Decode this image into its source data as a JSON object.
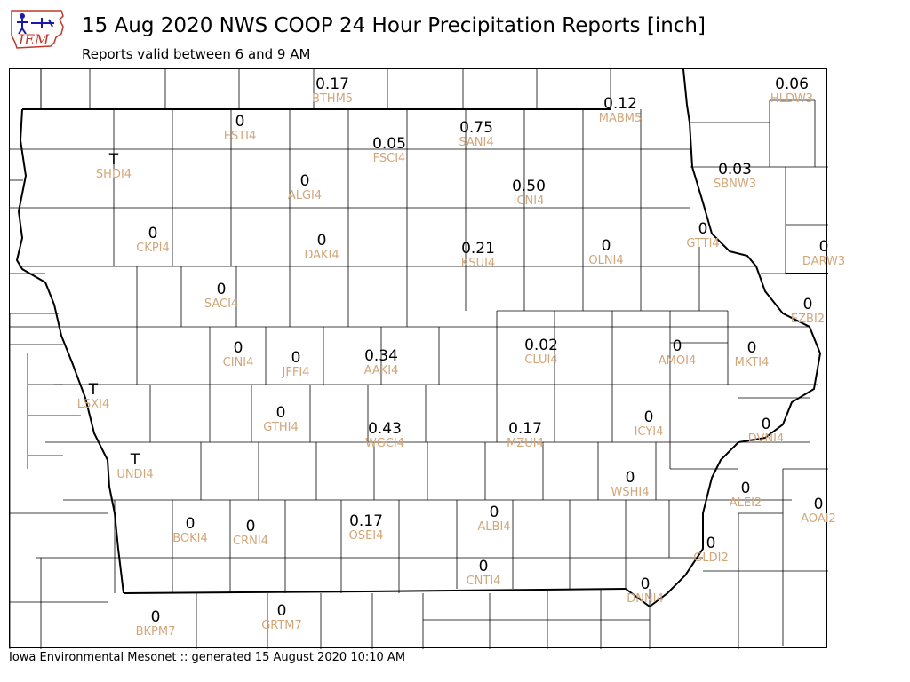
{
  "header": {
    "title": "15 Aug 2020 NWS COOP 24 Hour Precipitation Reports [inch]",
    "subtitle": "Reports valid between 6 and 9 AM",
    "logo_text": "IEM"
  },
  "footer": {
    "text": "Iowa Environmental Mesonet :: generated 15 August 2020 10:10 AM"
  },
  "colors": {
    "value_text": "#000000",
    "station_id_text": "#d2a679",
    "boundary_lines": "#000000",
    "logo_blue": "#1a1aa8",
    "logo_red": "#c0392b"
  },
  "stations": [
    {
      "id": "BTHM5",
      "value": "0.17"
    },
    {
      "id": "HLDW3",
      "value": "0.06"
    },
    {
      "id": "MABM5",
      "value": "0.12"
    },
    {
      "id": "ESTI4",
      "value": "0"
    },
    {
      "id": "FSCI4",
      "value": "0.05"
    },
    {
      "id": "SANI4",
      "value": "0.75"
    },
    {
      "id": "SHDI4",
      "value": "T"
    },
    {
      "id": "ALGI4",
      "value": "0"
    },
    {
      "id": "ICNI4",
      "value": "0.50"
    },
    {
      "id": "SBNW3",
      "value": "0.03"
    },
    {
      "id": "CKPI4",
      "value": "0"
    },
    {
      "id": "DAKI4",
      "value": "0"
    },
    {
      "id": "KSUI4",
      "value": "0.21"
    },
    {
      "id": "OLNI4",
      "value": "0"
    },
    {
      "id": "GTTI4",
      "value": "0"
    },
    {
      "id": "DARW3",
      "value": "0"
    },
    {
      "id": "SACI4",
      "value": "0"
    },
    {
      "id": "EZBI2",
      "value": "0"
    },
    {
      "id": "CINI4",
      "value": "0"
    },
    {
      "id": "JFFI4",
      "value": "0"
    },
    {
      "id": "AAKI4",
      "value": "0.34"
    },
    {
      "id": "CLUI4",
      "value": "0.02"
    },
    {
      "id": "AMOI4",
      "value": "0"
    },
    {
      "id": "MKTI4",
      "value": "0"
    },
    {
      "id": "LSXI4",
      "value": "T"
    },
    {
      "id": "GTHI4",
      "value": "0"
    },
    {
      "id": "WGCI4",
      "value": "0.43"
    },
    {
      "id": "MZUI4",
      "value": "0.17"
    },
    {
      "id": "ICYI4",
      "value": "0"
    },
    {
      "id": "DVNI4",
      "value": "0"
    },
    {
      "id": "UNDI4",
      "value": "T"
    },
    {
      "id": "WSHI4",
      "value": "0"
    },
    {
      "id": "ALEI2",
      "value": "0"
    },
    {
      "id": "AOAI2",
      "value": "0"
    },
    {
      "id": "BOKI4",
      "value": "0"
    },
    {
      "id": "CRNI4",
      "value": "0"
    },
    {
      "id": "OSEI4",
      "value": "0.17"
    },
    {
      "id": "ALBI4",
      "value": "0"
    },
    {
      "id": "GLDI2",
      "value": "0"
    },
    {
      "id": "CNTI4",
      "value": "0"
    },
    {
      "id": "DNNI4",
      "value": "0"
    },
    {
      "id": "BKPM7",
      "value": "0"
    },
    {
      "id": "GRTM7",
      "value": "0"
    }
  ]
}
